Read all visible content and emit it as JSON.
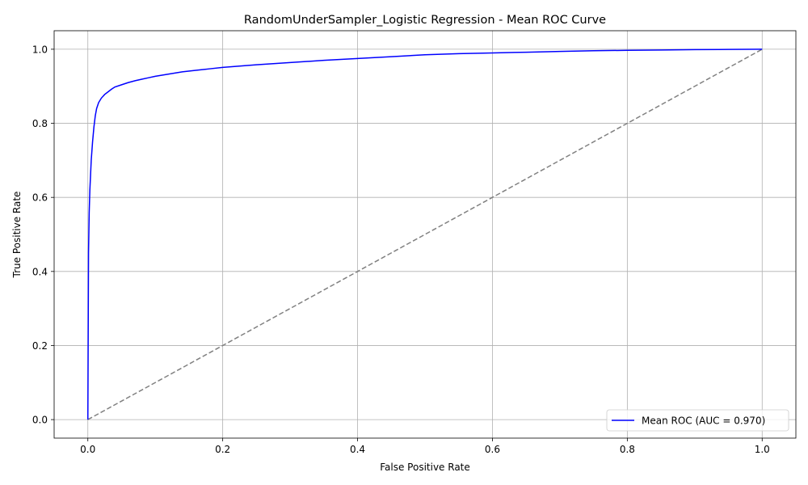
{
  "chart_data": {
    "type": "line",
    "title": "RandomUnderSampler_Logistic Regression - Mean ROC Curve",
    "xlabel": "False Positive Rate",
    "ylabel": "True Positive Rate",
    "xlim": [
      -0.05,
      1.05
    ],
    "ylim": [
      -0.05,
      1.05
    ],
    "xticks": [
      "0.0",
      "0.2",
      "0.4",
      "0.6",
      "0.8",
      "1.0"
    ],
    "yticks": [
      "0.0",
      "0.2",
      "0.4",
      "0.6",
      "0.8",
      "1.0"
    ],
    "grid": true,
    "legend_position": "lower-right",
    "series": [
      {
        "name": "Mean ROC (AUC = 0.970)",
        "color": "#0000ff",
        "style": "solid",
        "x": [
          0.0,
          0.001,
          0.002,
          0.003,
          0.004,
          0.005,
          0.007,
          0.009,
          0.011,
          0.013,
          0.016,
          0.02,
          0.025,
          0.03,
          0.035,
          0.04,
          0.05,
          0.06,
          0.07,
          0.08,
          0.09,
          0.1,
          0.12,
          0.14,
          0.16,
          0.18,
          0.2,
          0.25,
          0.3,
          0.35,
          0.4,
          0.45,
          0.5,
          0.55,
          0.6,
          0.65,
          0.7,
          0.75,
          0.8,
          0.85,
          0.9,
          0.95,
          1.0
        ],
        "y": [
          0.0,
          0.45,
          0.56,
          0.62,
          0.66,
          0.7,
          0.75,
          0.79,
          0.82,
          0.84,
          0.856,
          0.868,
          0.878,
          0.885,
          0.892,
          0.898,
          0.904,
          0.91,
          0.915,
          0.919,
          0.923,
          0.927,
          0.933,
          0.939,
          0.943,
          0.947,
          0.951,
          0.958,
          0.964,
          0.97,
          0.975,
          0.98,
          0.985,
          0.988,
          0.99,
          0.992,
          0.994,
          0.996,
          0.997,
          0.998,
          0.999,
          0.9995,
          1.0
        ]
      },
      {
        "color": "#808080",
        "style": "dashed",
        "x": [
          0.0,
          1.0
        ],
        "y": [
          0.0,
          1.0
        ]
      }
    ]
  }
}
